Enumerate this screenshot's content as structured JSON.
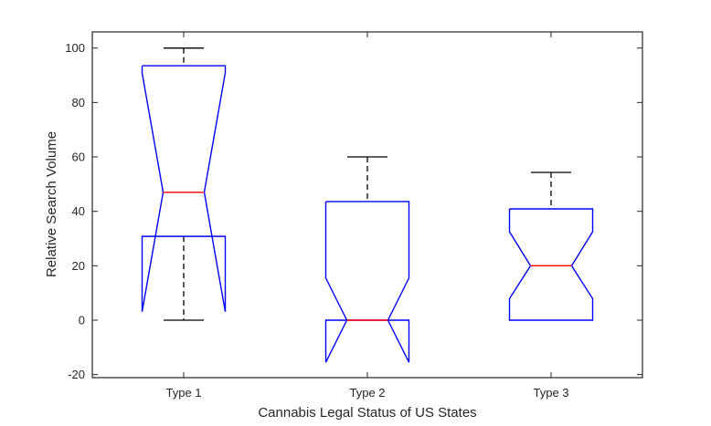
{
  "chart_data": {
    "type": "boxplot",
    "title": "",
    "xlabel": "Cannabis Legal Status of US States",
    "ylabel": "Relative Search Volume",
    "ylim": [
      -21,
      106
    ],
    "yticks": [
      -20,
      0,
      20,
      40,
      60,
      80,
      100
    ],
    "categories": [
      "Type 1",
      "Type 2",
      "Type 3"
    ],
    "notched": true,
    "boxes": [
      {
        "category": "Type 1",
        "min": 0,
        "q1": 30.8,
        "median": 47,
        "q3": 93.5,
        "max": 100,
        "notch_low": 3.1,
        "notch_high": 90.9
      },
      {
        "category": "Type 2",
        "min": 0,
        "q1": 0,
        "median": 0,
        "q3": 43.6,
        "max": 60,
        "notch_low": -15.5,
        "notch_high": 15.5
      },
      {
        "category": "Type 3",
        "min": 0,
        "q1": 0,
        "median": 20,
        "q3": 40.9,
        "max": 54.3,
        "notch_low": 7.9,
        "notch_high": 32.5
      }
    ],
    "colors": {
      "box": "#0000ff",
      "median": "#ff0000",
      "whisker": "#000000",
      "axis": "#262626"
    },
    "grid": false,
    "legend": null
  }
}
